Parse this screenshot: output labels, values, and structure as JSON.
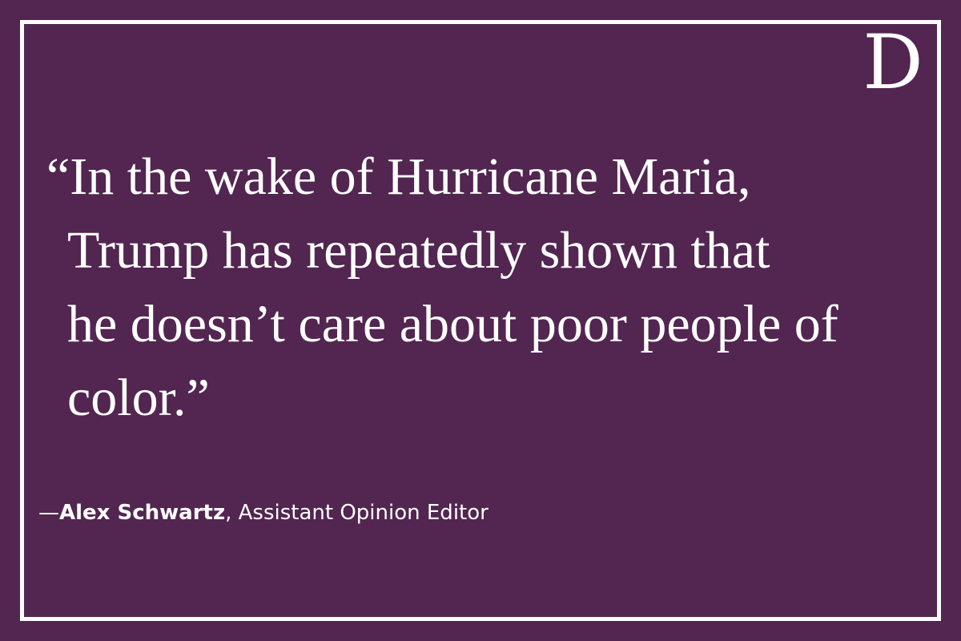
{
  "brand": {
    "logo_letter": "D"
  },
  "quote": {
    "lines": [
      "“In the wake of Hurricane Maria,",
      "Trump has repeatedly shown that",
      "he doesn’t care about poor people of",
      "color.”"
    ]
  },
  "attribution": {
    "dash": "—",
    "name": "Alex Schwartz",
    "separator": ",",
    "title": " Assistant Opinion Editor"
  },
  "colors": {
    "background": "#522650",
    "text": "#ffffff",
    "border": "#ffffff"
  }
}
